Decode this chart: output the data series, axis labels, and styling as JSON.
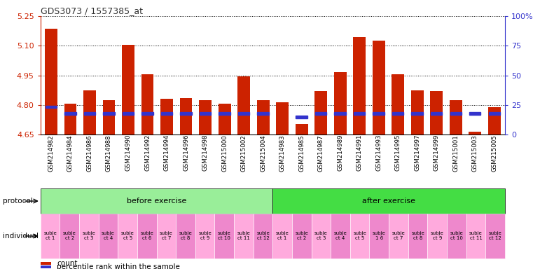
{
  "title": "GDS3073 / 1557385_at",
  "gsm_labels": [
    "GSM214982",
    "GSM214984",
    "GSM214986",
    "GSM214988",
    "GSM214990",
    "GSM214992",
    "GSM214994",
    "GSM214996",
    "GSM214998",
    "GSM215000",
    "GSM215002",
    "GSM215004",
    "GSM214983",
    "GSM214985",
    "GSM214987",
    "GSM214989",
    "GSM214991",
    "GSM214993",
    "GSM214995",
    "GSM214997",
    "GSM214999",
    "GSM215001",
    "GSM215003",
    "GSM215005"
  ],
  "bar_values": [
    5.185,
    4.805,
    4.875,
    4.825,
    5.105,
    4.955,
    4.83,
    4.835,
    4.825,
    4.805,
    4.945,
    4.825,
    4.815,
    4.705,
    4.87,
    4.965,
    5.145,
    5.125,
    4.955,
    4.875,
    4.87,
    4.825,
    4.665,
    4.79
  ],
  "percentile_values": [
    4.79,
    4.757,
    4.757,
    4.757,
    4.757,
    4.757,
    4.757,
    4.757,
    4.757,
    4.757,
    4.757,
    4.757,
    0,
    4.74,
    4.757,
    4.757,
    4.757,
    4.757,
    4.757,
    4.757,
    4.757,
    4.757,
    4.757,
    4.757
  ],
  "percentile_has_mark": [
    true,
    true,
    true,
    true,
    true,
    true,
    true,
    true,
    true,
    true,
    true,
    true,
    false,
    true,
    true,
    true,
    true,
    true,
    true,
    true,
    true,
    true,
    true,
    true
  ],
  "ylim": [
    4.65,
    5.25
  ],
  "yticks_left": [
    4.65,
    4.8,
    4.95,
    5.1,
    5.25
  ],
  "yticks_right": [
    0,
    25,
    50,
    75,
    100
  ],
  "ytick_right_labels": [
    "0",
    "25",
    "50",
    "75",
    "100%"
  ],
  "grid_lines": [
    4.8,
    4.95,
    5.1,
    5.25
  ],
  "before_exercise_count": 12,
  "protocol_before": "before exercise",
  "protocol_after": "after exercise",
  "individual_labels_before": [
    "subje\nct 1",
    "subje\nct 2",
    "subje\nct 3",
    "subje\nct 4",
    "subje\nct 5",
    "subje\nct 6",
    "subje\nct 7",
    "subje\nct 8",
    "subje\nct 9",
    "subje\nct 10",
    "subje\nct 11",
    "subje\nct 12"
  ],
  "individual_labels_after": [
    "subje\nct 1",
    "subje\nct 2",
    "subje\nct 3",
    "subje\nct 4",
    "subje\nct 5",
    "subje\n1 6",
    "subje\nct 7",
    "subje\nct 8",
    "subje\nct 9",
    "subje\nct 10",
    "subje\nct 11",
    "subje\nct 12"
  ],
  "bar_color": "#cc2200",
  "percentile_color": "#3333cc",
  "before_protocol_color": "#99ee99",
  "after_protocol_color": "#44dd44",
  "individual_color_even": "#ffaadd",
  "individual_color_odd": "#ee88cc",
  "title_color": "#333333",
  "left_axis_color": "#cc2200",
  "right_axis_color": "#3333cc"
}
